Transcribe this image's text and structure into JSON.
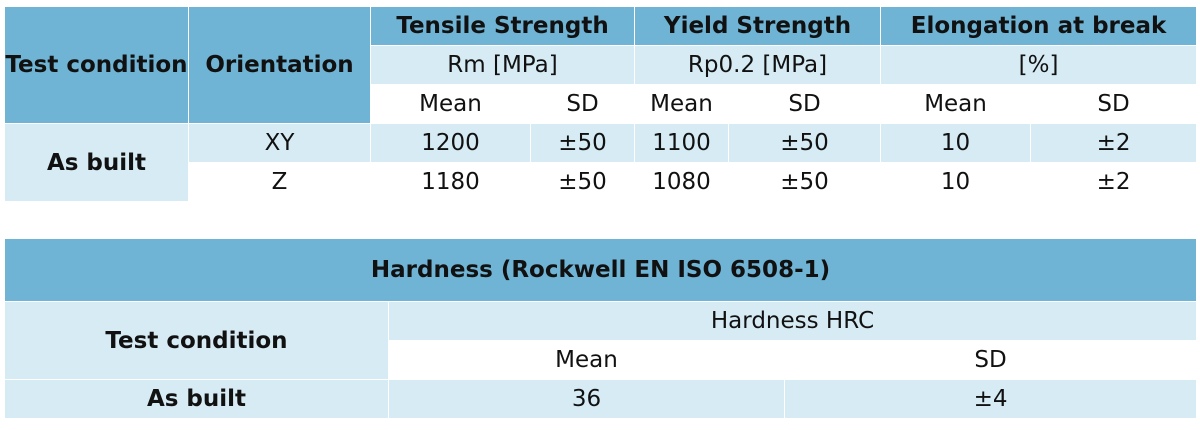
{
  "tensile_table": {
    "header": {
      "test_condition": "Test condition",
      "orientation": "Orientation",
      "tensile_strength": "Tensile Strength",
      "yield_strength": "Yield Strength",
      "elongation": "Elongation at break",
      "tensile_unit": "Rm [MPa]",
      "yield_unit": "Rp0.2 [MPa]",
      "elongation_unit": "[%]",
      "mean": "Mean",
      "sd": "SD"
    },
    "condition_label": "As built",
    "rows": [
      {
        "orientation": "XY",
        "tensile_mean": "1200",
        "tensile_sd": "±50",
        "yield_mean": "1100",
        "yield_sd": "±50",
        "elong_mean": "10",
        "elong_sd": "±2"
      },
      {
        "orientation": "Z",
        "tensile_mean": "1180",
        "tensile_sd": "±50",
        "yield_mean": "1080",
        "yield_sd": "±50",
        "elong_mean": "10",
        "elong_sd": "±2"
      }
    ]
  },
  "hardness_table": {
    "title": "Hardness (Rockwell EN ISO 6508-1)",
    "test_condition": "Test condition",
    "hardness_label": "Hardness HRC",
    "mean": "Mean",
    "sd": "SD",
    "row": {
      "condition": "As built",
      "mean": "36",
      "sd": "±4"
    }
  },
  "colors": {
    "header_blue": "#6fb4d4",
    "light_blue": "#d6ebf4",
    "white": "#ffffff"
  }
}
